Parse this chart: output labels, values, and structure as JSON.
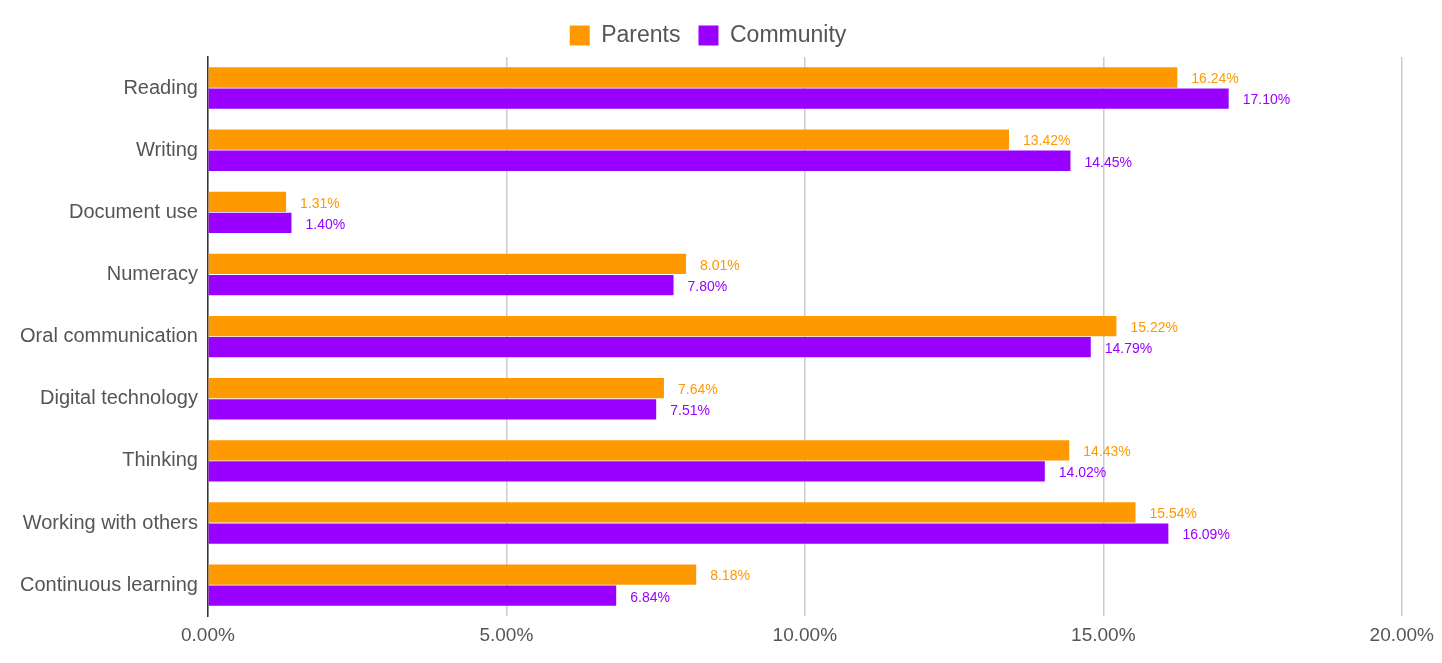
{
  "chart_data": {
    "type": "bar",
    "orientation": "horizontal",
    "categories": [
      "Reading",
      "Writing",
      "Document use",
      "Numeracy",
      "Oral communication",
      "Digital technology",
      "Thinking",
      "Working with others",
      "Continuous learning"
    ],
    "series": [
      {
        "name": "Parents",
        "color": "#ff9900",
        "values": [
          16.24,
          13.42,
          1.31,
          8.01,
          15.22,
          7.64,
          14.43,
          15.54,
          8.18
        ],
        "value_labels": [
          "16.24%",
          "13.42%",
          "1.31%",
          "8.01%",
          "15.22%",
          "7.64%",
          "14.43%",
          "15.54%",
          "8.18%"
        ]
      },
      {
        "name": "Community",
        "color": "#9900ff",
        "values": [
          17.1,
          14.45,
          1.4,
          7.8,
          14.79,
          7.51,
          14.02,
          16.09,
          6.84
        ],
        "value_labels": [
          "17.10%",
          "14.45%",
          "1.40%",
          "7.80%",
          "14.79%",
          "7.51%",
          "14.02%",
          "16.09%",
          "6.84%"
        ]
      }
    ],
    "xlim": [
      0,
      20
    ],
    "xticks": [
      {
        "value": 0,
        "label": "0.00%"
      },
      {
        "value": 5,
        "label": "5.00%"
      },
      {
        "value": 10,
        "label": "10.00%"
      },
      {
        "value": 15,
        "label": "15.00%"
      },
      {
        "value": 20,
        "label": "20.00%"
      }
    ],
    "grid": "x",
    "legend": "top"
  }
}
